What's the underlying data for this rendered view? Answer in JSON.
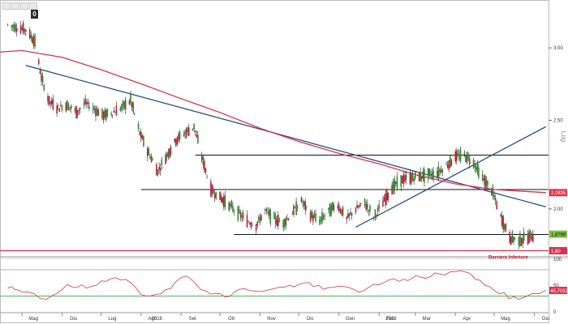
{
  "toolbar": {
    "counter": "0"
  },
  "chart_data": [
    {
      "type": "candlestick",
      "yscale": "log",
      "ylim": [
        1.78,
        3.35
      ],
      "y_ticks": [
        "3.00",
        "2.50",
        "2.00"
      ],
      "y_tick_values": [
        3.0,
        2.5,
        2.0
      ],
      "scale_label": "Log",
      "x_labels": [
        "Mag",
        "Giu",
        "Lug",
        "Ago",
        "Set",
        "Ott",
        "Nov",
        "Dic",
        "Gen",
        "Feb",
        "Mar",
        "Apr",
        "Mag",
        "Giu"
      ],
      "year_labels": [
        "2018",
        "2019"
      ],
      "series": [
        {
          "kind": "price",
          "x": [
            "2018-04-20",
            "2018-04-27",
            "2018-05-04",
            "2018-05-11",
            "2018-05-16",
            "2018-05-22",
            "2018-05-29",
            "2018-06-05",
            "2018-06-12",
            "2018-06-19",
            "2018-06-26",
            "2018-07-03",
            "2018-07-10",
            "2018-07-17",
            "2018-07-24",
            "2018-07-31",
            "2018-08-07",
            "2018-08-14",
            "2018-08-21",
            "2018-08-28",
            "2018-09-04",
            "2018-09-11",
            "2018-09-17",
            "2018-09-24",
            "2018-10-01",
            "2018-10-08",
            "2018-10-15",
            "2018-10-22",
            "2018-10-29",
            "2018-11-05",
            "2018-11-12",
            "2018-11-19",
            "2018-11-26",
            "2018-12-03",
            "2018-12-10",
            "2018-12-17",
            "2018-12-24",
            "2018-12-31",
            "2019-01-07",
            "2019-01-14",
            "2019-01-21",
            "2019-01-28",
            "2019-02-04",
            "2019-02-11",
            "2019-02-18",
            "2019-02-25",
            "2019-03-04",
            "2019-03-11",
            "2019-03-18",
            "2019-03-25",
            "2019-04-01",
            "2019-04-08",
            "2019-04-15",
            "2019-04-22",
            "2019-04-29",
            "2019-05-06",
            "2019-05-13",
            "2019-05-20",
            "2019-05-27",
            "2019-06-03"
          ],
          "y": [
            3.18,
            3.16,
            3.14,
            3.05,
            2.78,
            2.62,
            2.58,
            2.6,
            2.55,
            2.61,
            2.57,
            2.53,
            2.55,
            2.58,
            2.63,
            2.42,
            2.3,
            2.2,
            2.29,
            2.38,
            2.42,
            2.46,
            2.28,
            2.1,
            2.06,
            2.02,
            1.98,
            1.94,
            1.92,
            1.99,
            1.95,
            1.93,
            1.98,
            2.04,
            1.97,
            1.94,
            1.99,
            2.02,
            1.95,
            2.0,
            2.03,
            1.96,
            2.03,
            2.11,
            2.15,
            2.16,
            2.17,
            2.18,
            2.19,
            2.23,
            2.28,
            2.29,
            2.25,
            2.16,
            2.1,
            1.96,
            1.86,
            1.85,
            1.86,
            1.8766
          ]
        },
        {
          "kind": "moving-average",
          "x": [
            "2018-04-01",
            "2018-05-01",
            "2018-06-01",
            "2018-07-01",
            "2018-08-01",
            "2018-09-01",
            "2018-10-01",
            "2018-11-01",
            "2018-12-01",
            "2019-01-01",
            "2019-02-01",
            "2019-03-01",
            "2019-04-01",
            "2019-05-01",
            "2019-06-10"
          ],
          "y": [
            2.96,
            2.98,
            2.93,
            2.84,
            2.74,
            2.64,
            2.55,
            2.45,
            2.37,
            2.3,
            2.24,
            2.18,
            2.13,
            2.1,
            2.0835
          ]
        }
      ],
      "last_value_label": "1,8766",
      "reference_levels": [
        {
          "value": 2.0835,
          "label": "2,0835"
        },
        {
          "value": 1.8,
          "label": "1,80",
          "annotation": "Barriera Inferiore"
        }
      ],
      "horizontal_levels": [
        2.29,
        2.1,
        1.875
      ],
      "trendlines": [
        {
          "x": [
            "2018-05-04",
            "2019-06-10"
          ],
          "y": [
            2.87,
            2.01
          ]
        },
        {
          "x": [
            "2019-01-14",
            "2019-06-10"
          ],
          "y": [
            1.91,
            2.46
          ]
        }
      ]
    },
    {
      "type": "line",
      "name_hidden": true,
      "ylim": [
        0,
        100
      ],
      "y_ticks": [
        "100",
        "50",
        "0"
      ],
      "y_tick_values": [
        100,
        50,
        0
      ],
      "reference_lines": [
        80,
        30
      ],
      "last_value_label": "40,7032",
      "series": [
        {
          "x": [
            "2018-04-20",
            "2018-05-01",
            "2018-05-20",
            "2018-06-05",
            "2018-06-20",
            "2018-07-05",
            "2018-07-20",
            "2018-08-05",
            "2018-08-20",
            "2018-09-05",
            "2018-09-20",
            "2018-10-05",
            "2018-10-20",
            "2018-11-05",
            "2018-11-20",
            "2018-12-05",
            "2018-12-20",
            "2019-01-05",
            "2019-01-20",
            "2019-02-05",
            "2019-02-20",
            "2019-03-05",
            "2019-03-20",
            "2019-04-05",
            "2019-04-20",
            "2019-05-05",
            "2019-05-20",
            "2019-06-10"
          ],
          "y": [
            45,
            38,
            24,
            52,
            45,
            58,
            62,
            30,
            42,
            68,
            40,
            28,
            44,
            40,
            47,
            55,
            43,
            48,
            40,
            56,
            62,
            66,
            72,
            78,
            60,
            34,
            24,
            40.7032
          ]
        }
      ]
    }
  ]
}
